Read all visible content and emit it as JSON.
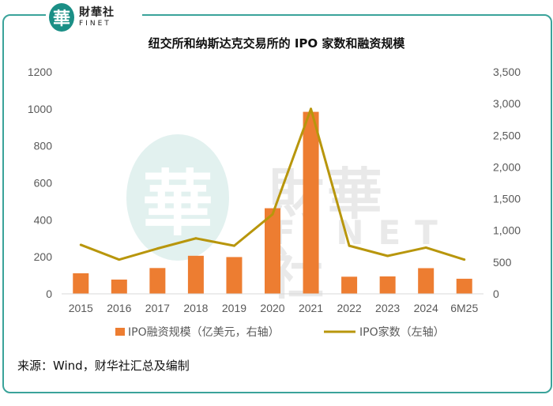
{
  "logo": {
    "mark": "華",
    "name_cn": "財華社",
    "name_en": "FINET"
  },
  "watermark": {
    "mark": "華",
    "name_cn": "財華社",
    "name_en": "FINET"
  },
  "source": "来源：Wind，财华社汇总及编制",
  "colors": {
    "bar": "#ed7d31",
    "line": "#b8960c",
    "frame": "#3aa39a",
    "axis_text": "#595959",
    "grid": "#d9d9d9"
  },
  "chart_data": {
    "type": "bar+line",
    "title": "纽交所和纳斯达克交易所的 IPO 家数和融资规模",
    "categories": [
      "2015",
      "2016",
      "2017",
      "2018",
      "2019",
      "2020",
      "2021",
      "2022",
      "2023",
      "2024",
      "6M25"
    ],
    "series": [
      {
        "name": "IPO融资规模（亿美元，右轴）",
        "type": "bar",
        "axis": "right",
        "values": [
          324,
          225,
          407,
          600,
          580,
          1350,
          2870,
          270,
          275,
          405,
          238
        ]
      },
      {
        "name": "IPO家数（左轴）",
        "type": "line",
        "axis": "left",
        "values": [
          265,
          185,
          245,
          300,
          260,
          430,
          1000,
          260,
          205,
          250,
          185
        ]
      }
    ],
    "left_axis": {
      "ylim": [
        0,
        1200
      ],
      "ticks": [
        "0",
        "200",
        "400",
        "600",
        "800",
        "1000",
        "1200"
      ]
    },
    "right_axis": {
      "ylim": [
        0,
        3500
      ],
      "ticks": [
        "0",
        "500",
        "1,000",
        "1,500",
        "2,000",
        "2,500",
        "3,000",
        "3,500"
      ]
    },
    "grid": false,
    "legend_position": "bottom"
  }
}
